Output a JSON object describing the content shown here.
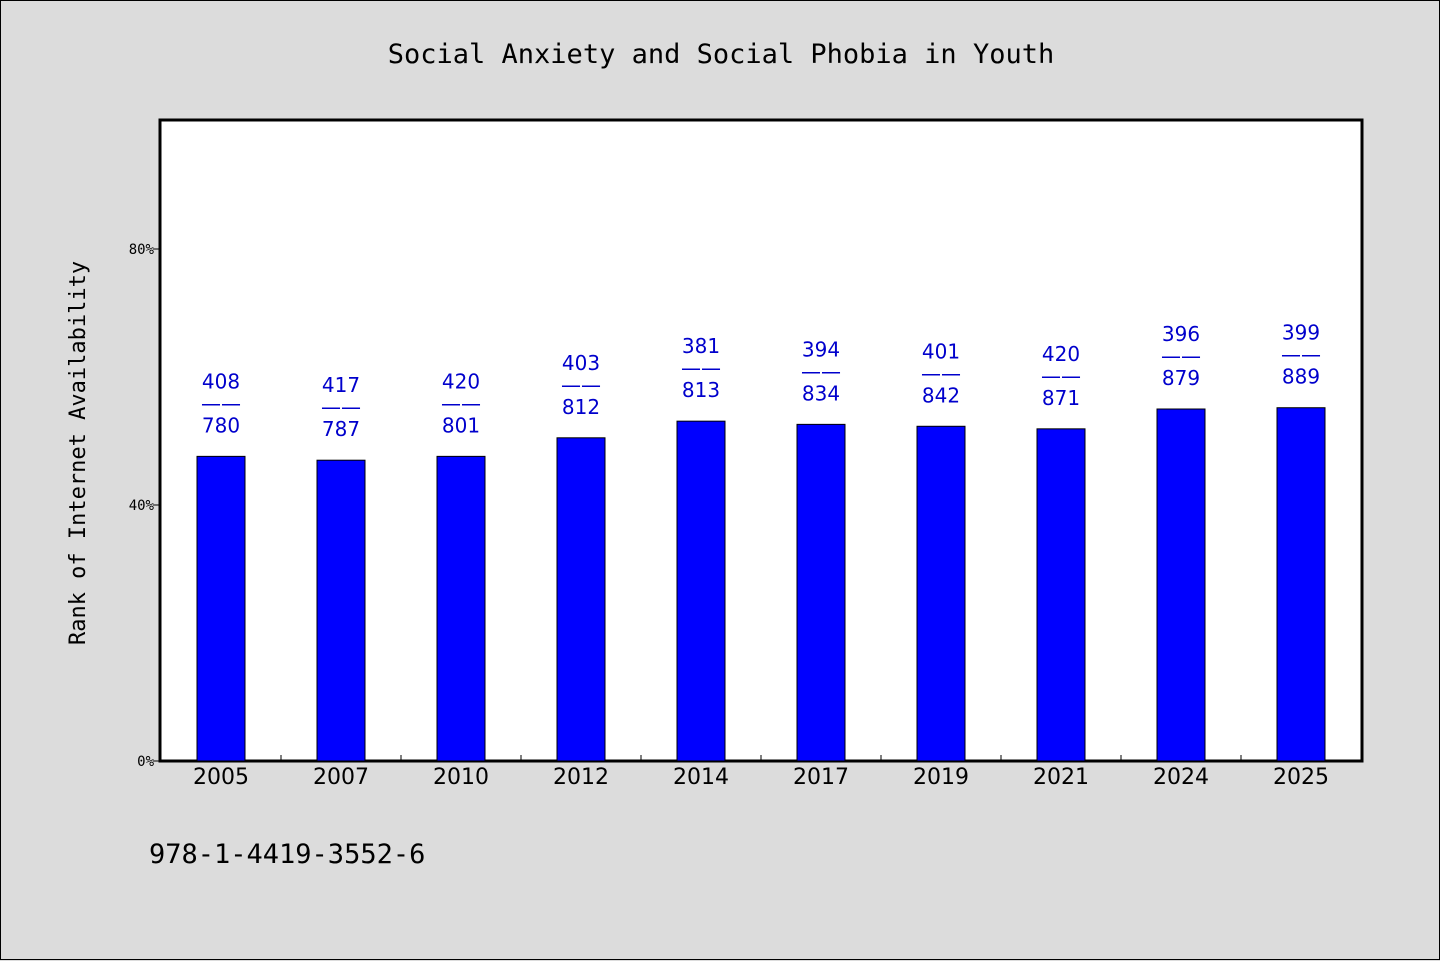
{
  "chart_data": {
    "type": "bar",
    "title": "Social Anxiety and Social Phobia in Youth",
    "ylabel": "Rank of Internet Availability",
    "xlabel": "",
    "ylim": [
      0,
      100
    ],
    "y_ticks": [
      {
        "value": 0,
        "label": "0%"
      },
      {
        "value": 40,
        "label": "40%"
      },
      {
        "value": 80,
        "label": "80%"
      }
    ],
    "categories": [
      "2005",
      "2007",
      "2010",
      "2012",
      "2014",
      "2017",
      "2019",
      "2021",
      "2024",
      "2025"
    ],
    "values": [
      47.6,
      47.0,
      47.6,
      50.5,
      53.1,
      52.6,
      52.3,
      51.9,
      55.0,
      55.2
    ],
    "data_labels": [
      {
        "top": "408",
        "sep": "——",
        "bottom": "780"
      },
      {
        "top": "417",
        "sep": "——",
        "bottom": "787"
      },
      {
        "top": "420",
        "sep": "——",
        "bottom": "801"
      },
      {
        "top": "403",
        "sep": "——",
        "bottom": "812"
      },
      {
        "top": "381",
        "sep": "——",
        "bottom": "813"
      },
      {
        "top": "394",
        "sep": "——",
        "bottom": "834"
      },
      {
        "top": "401",
        "sep": "——",
        "bottom": "842"
      },
      {
        "top": "420",
        "sep": "——",
        "bottom": "871"
      },
      {
        "top": "396",
        "sep": "——",
        "bottom": "879"
      },
      {
        "top": "399",
        "sep": "——",
        "bottom": "889"
      }
    ],
    "grid": false,
    "legend": "none",
    "bar_color": "#0000ff",
    "label_color": "#0000cc",
    "plot_background": "#ffffff",
    "page_background": "#dcdcdc"
  },
  "footer": {
    "isbn": "978-1-4419-3552-6"
  }
}
